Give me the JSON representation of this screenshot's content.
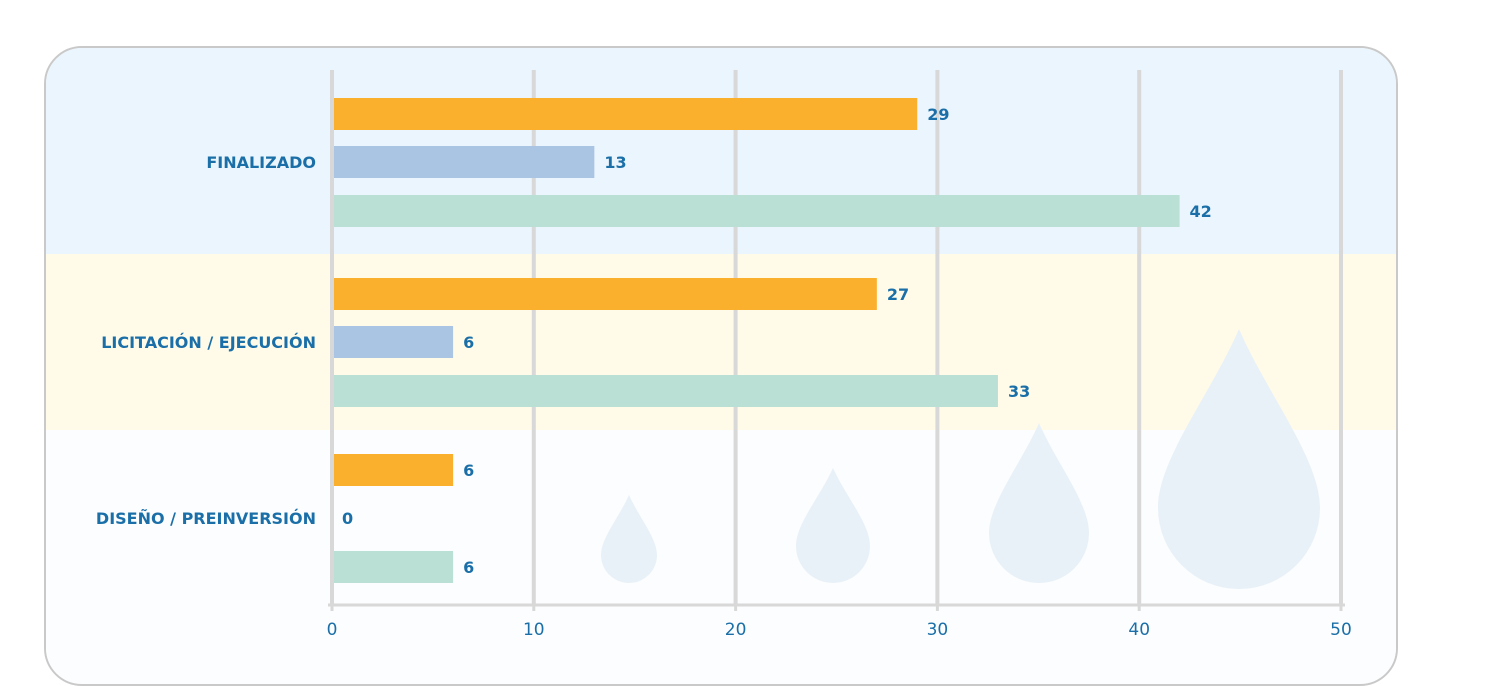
{
  "chart_data": {
    "type": "bar",
    "orientation": "horizontal",
    "categories": [
      "FINALIZADO",
      "LICITACIÓN / EJECUCIÓN",
      "DISEÑO / PREINVERSIÓN"
    ],
    "series": [
      {
        "values": [
          29,
          27,
          6
        ],
        "color": "#fbb02d"
      },
      {
        "values": [
          13,
          6,
          0
        ],
        "color": "#aac4e4"
      },
      {
        "values": [
          42,
          33,
          6
        ],
        "color": "#badfd5"
      }
    ],
    "xlim": [
      0,
      50
    ],
    "xticks": [
      "0",
      "10",
      "20",
      "30",
      "40",
      "50"
    ],
    "grid": true,
    "band_colors": [
      "#eaf5fd",
      "#fffbe8",
      "#fbfdfe"
    ],
    "gridline_color": "#d8d8d8",
    "label_color": "#1b6fa8"
  }
}
